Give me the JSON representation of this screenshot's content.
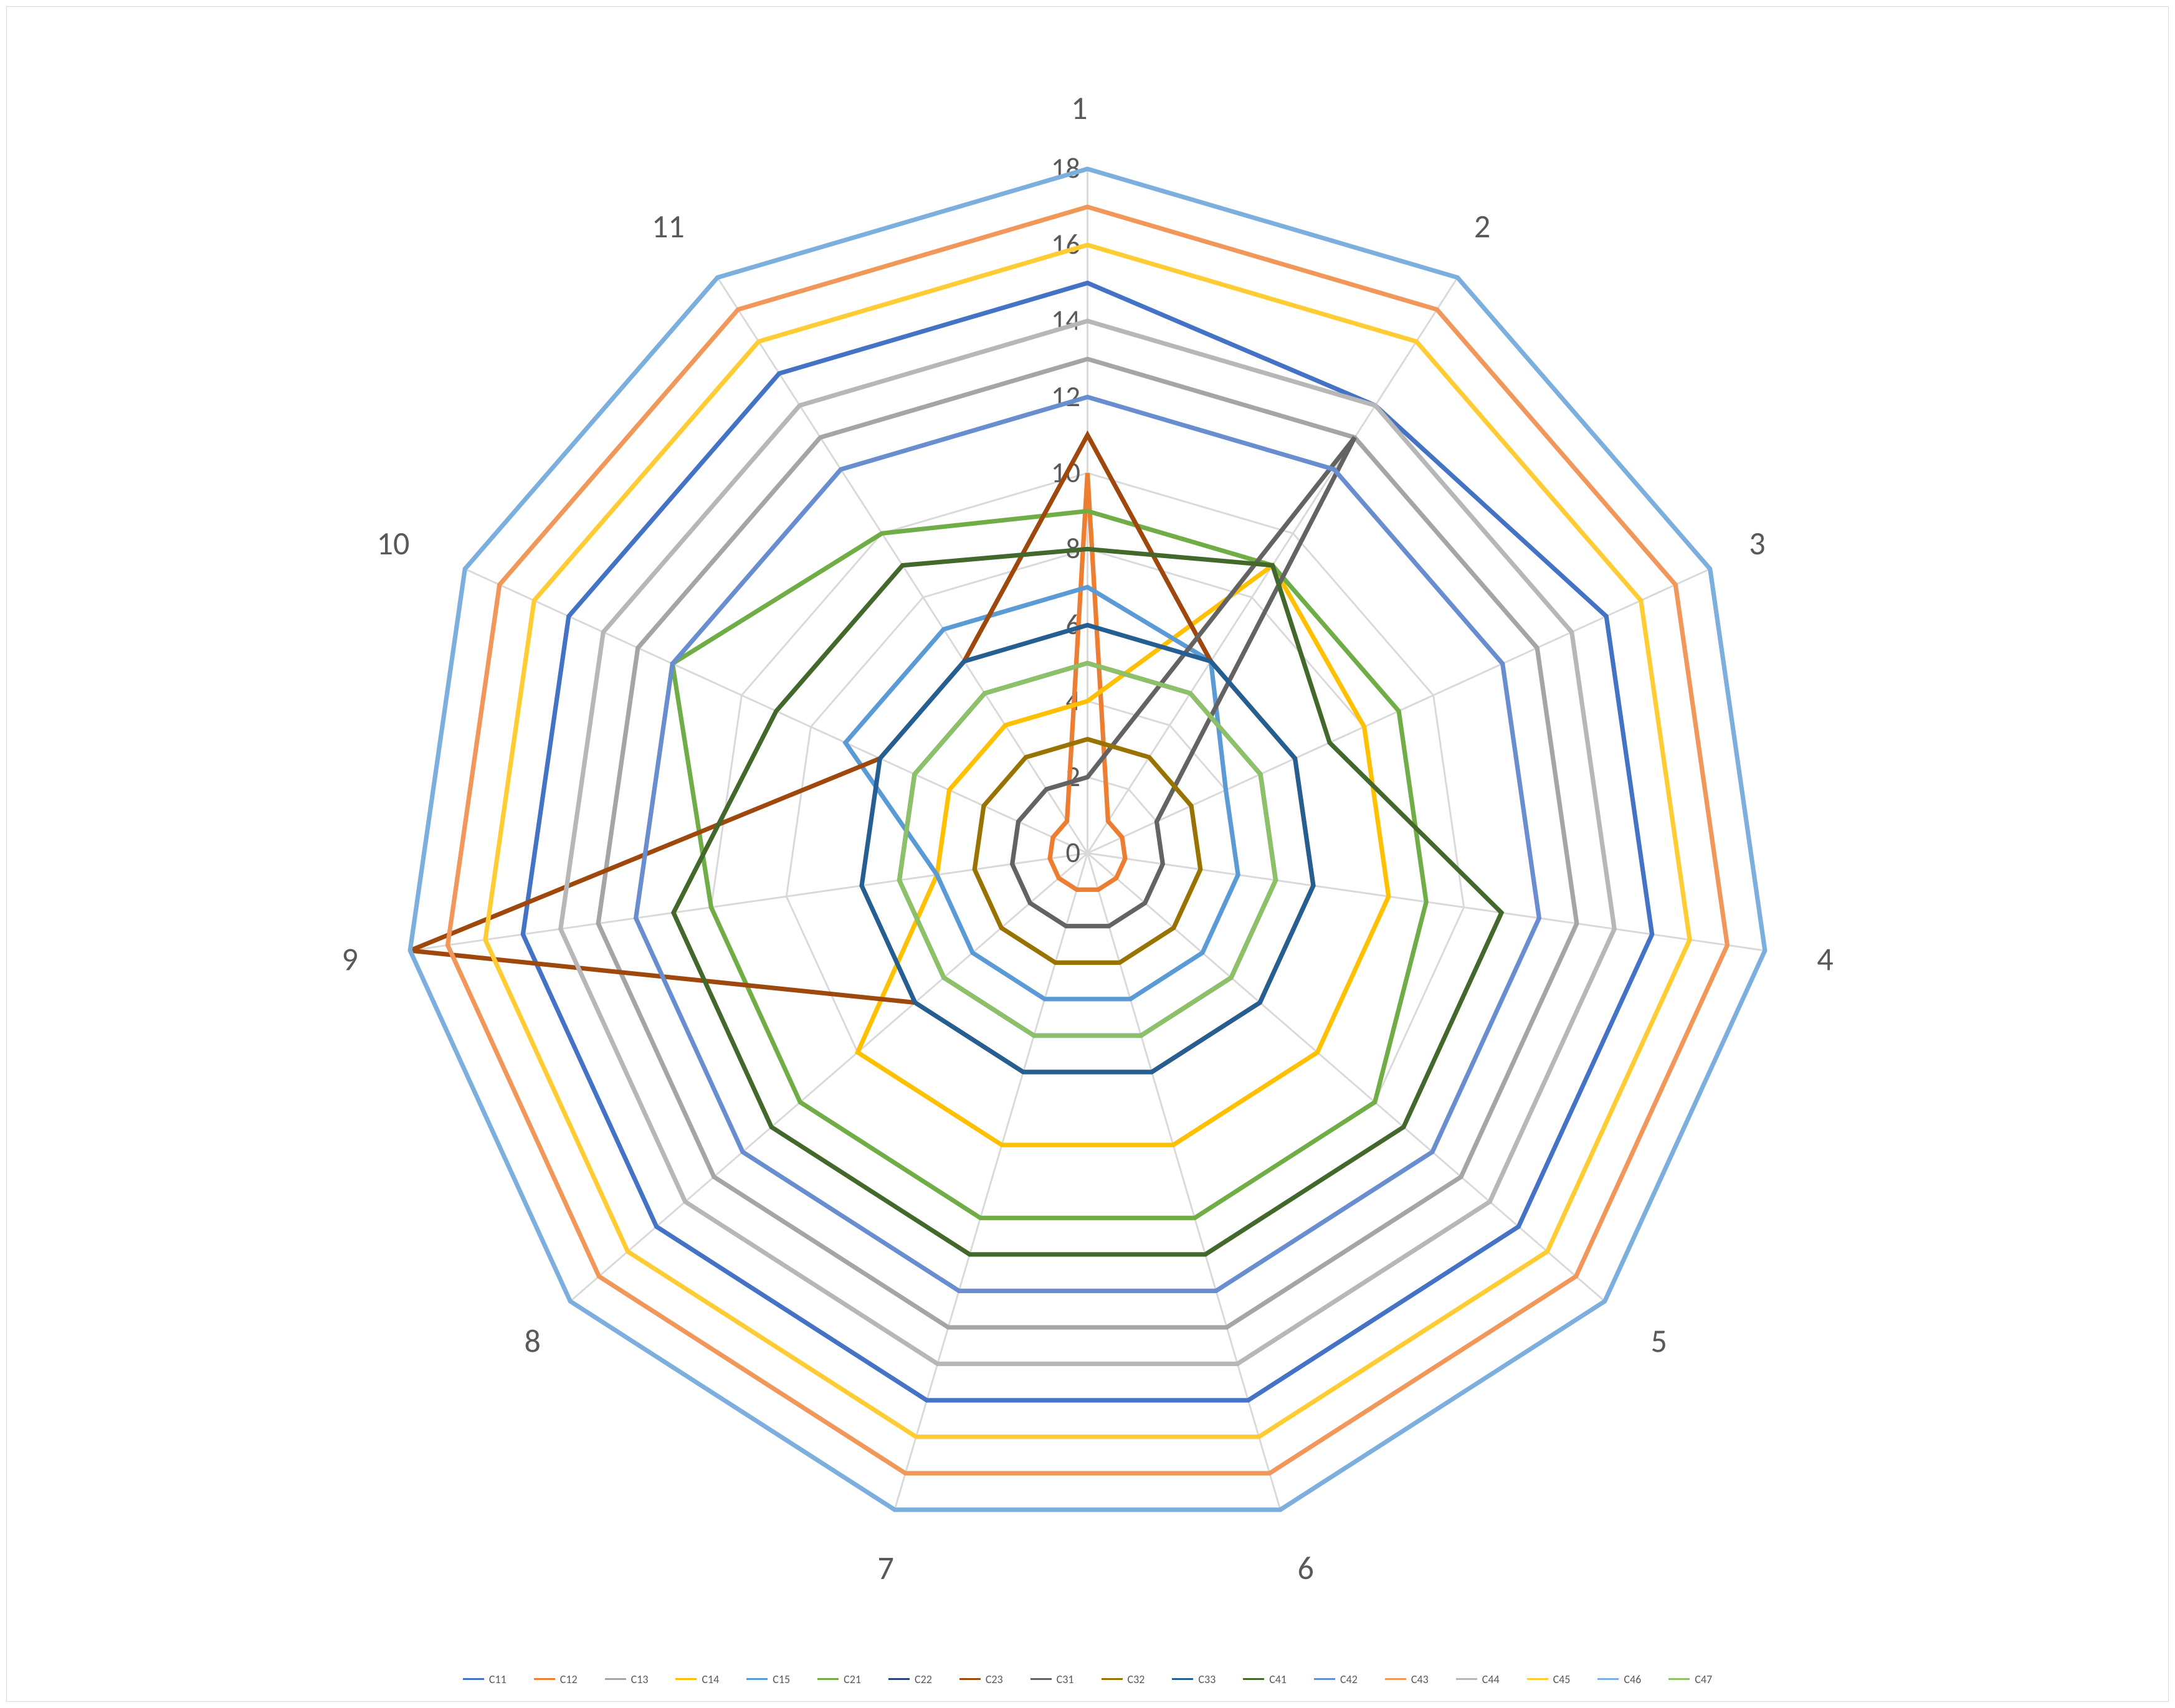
{
  "chart": {
    "type": "radar",
    "background_color": "#ffffff",
    "border_color": "#d9d9d9",
    "grid_color": "#d9d9d9",
    "grid_line_width": 1,
    "axis_label_color": "#595959",
    "axis_label_fontsize": 18,
    "radial_label_fontsize": 16,
    "line_width": 2.5,
    "categories": [
      "1",
      "2",
      "3",
      "4",
      "5",
      "6",
      "7",
      "8",
      "9",
      "10",
      "11"
    ],
    "radial_ticks": [
      0,
      2,
      4,
      6,
      8,
      10,
      12,
      14,
      16,
      18
    ],
    "rmax": 18,
    "series": [
      {
        "name": "C11",
        "color": "#4472c4",
        "values": [
          15,
          14,
          15,
          15,
          15,
          15,
          15,
          15,
          15,
          15,
          15
        ]
      },
      {
        "name": "C12",
        "color": "#ed7d31",
        "values": [
          10,
          1,
          1,
          1,
          1,
          1,
          1,
          1,
          1,
          1,
          1
        ]
      },
      {
        "name": "C13",
        "color": "#a5a5a5",
        "values": [
          13,
          13,
          13,
          13,
          13,
          13,
          13,
          13,
          13,
          13,
          13
        ]
      },
      {
        "name": "C14",
        "color": "#ffc000",
        "values": [
          4,
          9,
          8,
          8,
          8,
          8,
          8,
          8,
          4,
          4,
          4
        ]
      },
      {
        "name": "C15",
        "color": "#5b9bd5",
        "values": [
          7,
          6,
          4,
          4,
          4,
          4,
          4,
          4,
          4,
          7,
          7
        ]
      },
      {
        "name": "C21",
        "color": "#70ad47",
        "values": [
          9,
          9,
          9,
          9,
          10,
          10,
          10,
          10,
          10,
          12,
          10
        ]
      },
      {
        "name": "C22",
        "color": "#264478",
        "values": [
          5,
          5,
          5,
          5,
          5,
          5,
          5,
          5,
          5,
          5,
          5
        ]
      },
      {
        "name": "C23",
        "color": "#9e480e",
        "values": [
          11,
          6,
          6,
          6,
          6,
          6,
          6,
          6,
          18,
          6,
          6
        ]
      },
      {
        "name": "C31",
        "color": "#636363",
        "values": [
          2,
          13,
          2,
          2,
          2,
          2,
          2,
          2,
          2,
          2,
          2
        ]
      },
      {
        "name": "C32",
        "color": "#997300",
        "values": [
          3,
          3,
          3,
          3,
          3,
          3,
          3,
          3,
          3,
          3,
          3
        ]
      },
      {
        "name": "C33",
        "color": "#255e91",
        "values": [
          6,
          6,
          6,
          6,
          6,
          6,
          6,
          6,
          6,
          6,
          6
        ]
      },
      {
        "name": "C41",
        "color": "#43682b",
        "values": [
          8,
          9,
          7,
          11,
          11,
          11,
          11,
          11,
          11,
          9,
          9
        ]
      },
      {
        "name": "C42",
        "color": "#698ed0",
        "values": [
          12,
          12,
          12,
          12,
          12,
          12,
          12,
          12,
          12,
          12,
          12
        ]
      },
      {
        "name": "C43",
        "color": "#f1975a",
        "values": [
          17,
          17,
          17,
          17,
          17,
          17,
          17,
          17,
          17,
          17,
          17
        ]
      },
      {
        "name": "C44",
        "color": "#b7b7b7",
        "values": [
          14,
          14,
          14,
          14,
          14,
          14,
          14,
          14,
          14,
          14,
          14
        ]
      },
      {
        "name": "C45",
        "color": "#ffcd33",
        "values": [
          16,
          16,
          16,
          16,
          16,
          16,
          16,
          16,
          16,
          16,
          16
        ]
      },
      {
        "name": "C46",
        "color": "#7cafdd",
        "values": [
          18,
          18,
          18,
          18,
          18,
          18,
          18,
          18,
          18,
          18,
          18
        ]
      },
      {
        "name": "C47",
        "color": "#8cc168",
        "values": [
          5,
          5,
          5,
          5,
          5,
          5,
          5,
          5,
          5,
          5,
          5
        ]
      }
    ],
    "legend_position": "bottom",
    "aspect_ratio": 1.3
  }
}
